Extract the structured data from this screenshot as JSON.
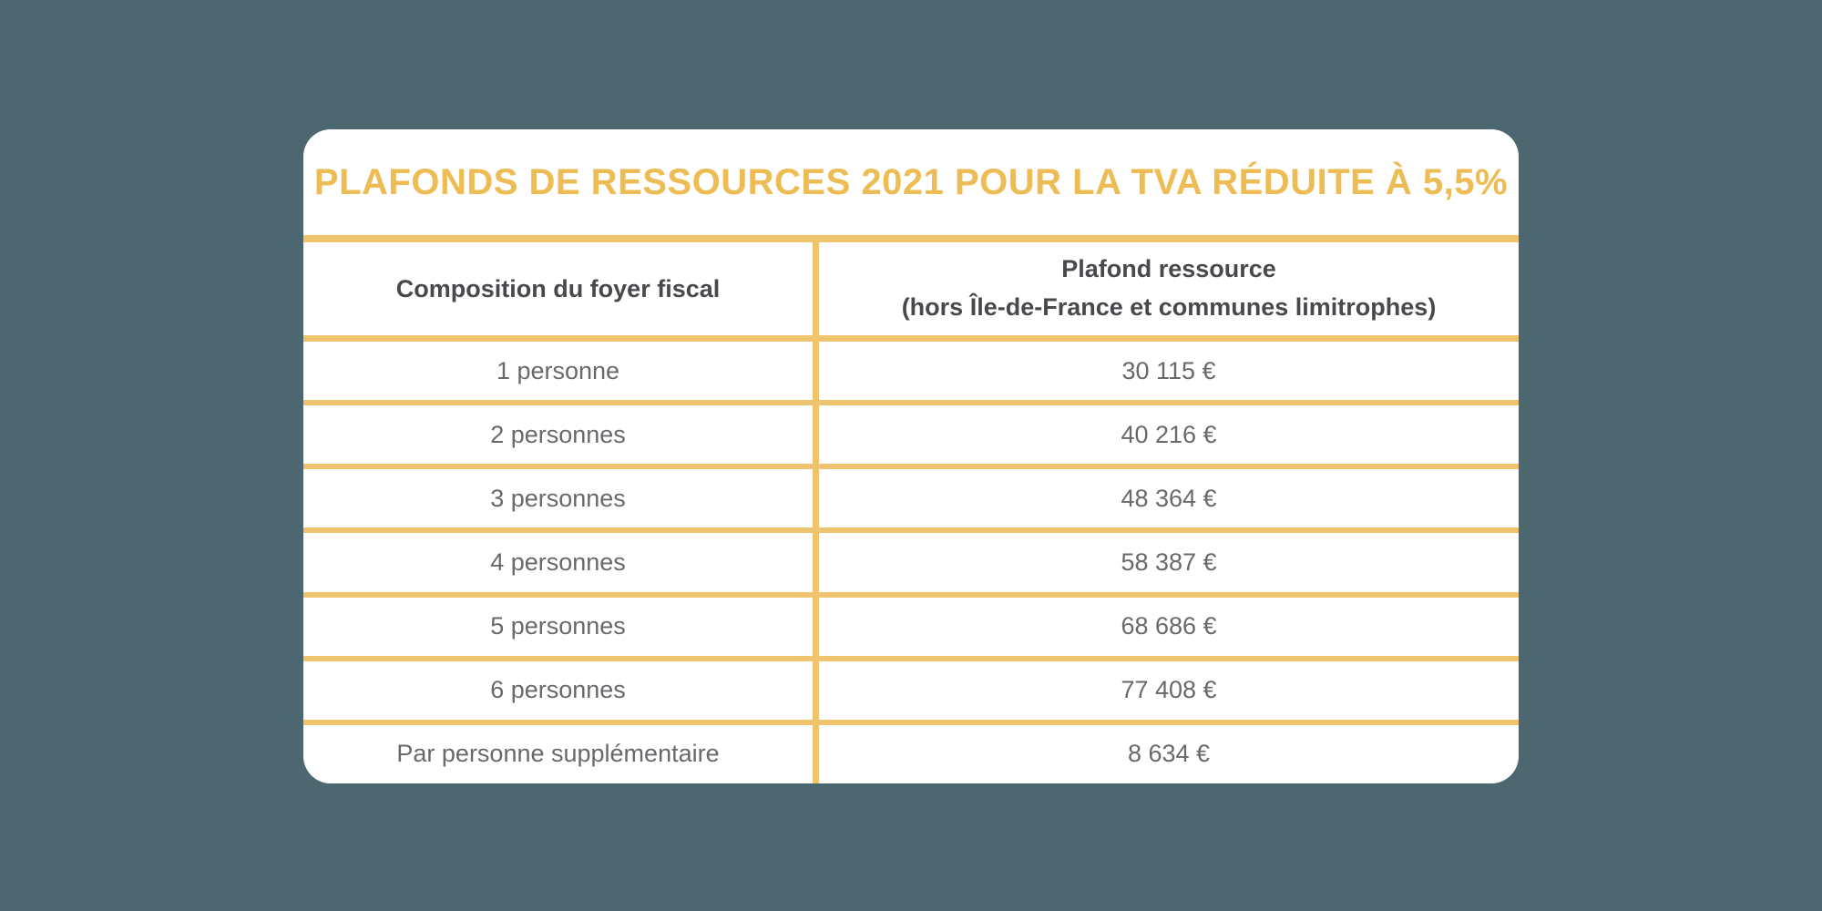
{
  "page": {
    "background_color": "#4C6770",
    "card_color": "#FFFFFF",
    "accent_gold_line": "#F0C46E",
    "accent_gold_title": "#EDBC55",
    "header_text_color": "#47494D",
    "body_text_color": "#67696D"
  },
  "card": {
    "title": "PLAFONDS DE RESSOURCES 2021 POUR LA TVA RÉDUITE À 5,5%"
  },
  "table": {
    "headers": {
      "composition": "Composition du foyer fiscal",
      "plafond_line1": "Plafond ressource",
      "plafond_line2": "(hors Île-de-France et communes limitrophes)"
    },
    "rows": [
      {
        "composition": "1 personne",
        "plafond": "30 115 €"
      },
      {
        "composition": "2 personnes",
        "plafond": "40 216 €"
      },
      {
        "composition": "3 personnes",
        "plafond": "48 364 €"
      },
      {
        "composition": "4 personnes",
        "plafond": "58 387 €"
      },
      {
        "composition": "5 personnes",
        "plafond": "68 686 €"
      },
      {
        "composition": "6 personnes",
        "plafond": "77 408 €"
      },
      {
        "composition": "Par personne supplémentaire",
        "plafond": "8 634 €"
      }
    ]
  },
  "chart_data": {
    "type": "table",
    "title": "PLAFONDS DE RESSOURCES 2021 POUR LA TVA RÉDUITE À 5,5%",
    "columns": [
      "Composition du foyer fiscal",
      "Plafond ressource (hors Île-de-France et communes limitrophes)"
    ],
    "rows": [
      [
        "1 personne",
        "30 115 €"
      ],
      [
        "2 personnes",
        "40 216 €"
      ],
      [
        "3 personnes",
        "48 364 €"
      ],
      [
        "4 personnes",
        "58 387 €"
      ],
      [
        "5 personnes",
        "68 686 €"
      ],
      [
        "6 personnes",
        "77 408 €"
      ],
      [
        "Par personne supplémentaire",
        "8 634 €"
      ]
    ],
    "values_eur": [
      30115,
      40216,
      48364,
      58387,
      68686,
      77408,
      8634
    ],
    "currency": "EUR",
    "layout": "two-column table, gold separators, white rounded card on slate-teal background"
  }
}
